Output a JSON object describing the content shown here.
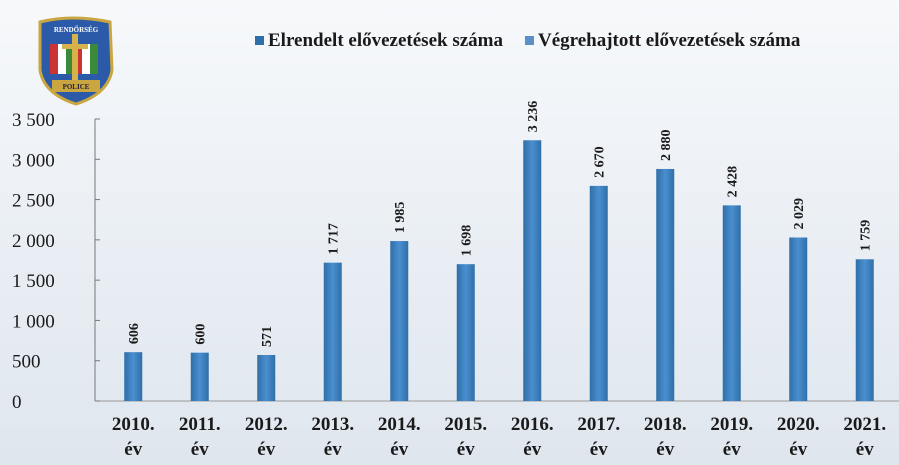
{
  "chart_data": {
    "type": "bar",
    "annotations": [
      "RENDŐRSÉG",
      "POLICE"
    ],
    "categories": [
      "2010. év",
      "2011. év",
      "2012. év",
      "2013. év",
      "2014. év",
      "2015. év",
      "2016. év",
      "2017. év",
      "2018. év",
      "2019. év",
      "2020. év",
      "2021. év"
    ],
    "series": [
      {
        "name": "Elrendelt elővezetések száma",
        "color": "#2f6fa8",
        "values": [
          606,
          600,
          571,
          1717,
          1985,
          1698,
          3236,
          2670,
          2880,
          2428,
          2029,
          1759
        ],
        "value_labels": [
          "606",
          "600",
          "571",
          "1 717",
          "1 985",
          "1 698",
          "3 236",
          "2 670",
          "2 880",
          "2 428",
          "2 029",
          "1 759"
        ]
      },
      {
        "name": "Végrehajtott elővezetések száma",
        "color": "#5b8fc7",
        "values": [
          null,
          null,
          null,
          null,
          null,
          null,
          null,
          null,
          null,
          null,
          null,
          null
        ]
      }
    ],
    "ylim": [
      0,
      3500
    ],
    "yticks": [
      0,
      500,
      {
        "value": 1000,
        "label": "1 000"
      },
      {
        "value": 1500,
        "label": "1 500"
      },
      {
        "value": 2000,
        "label": "2 000"
      },
      {
        "value": 2500,
        "label": "2 500"
      },
      {
        "value": 3000,
        "label": "3 000"
      },
      {
        "value": 3500,
        "label": "3 500"
      }
    ],
    "legend": "top"
  }
}
